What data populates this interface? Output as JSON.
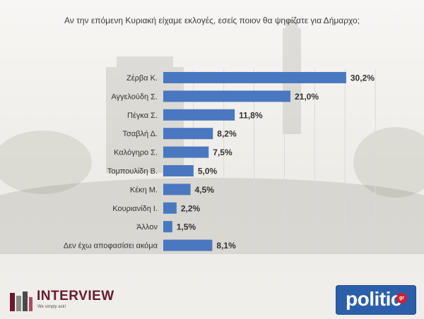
{
  "title": "Αν την επόμενη Κυριακή είχαμε εκλογές, εσείς ποιον θα ψηφίζατε για Δήμαρχο;",
  "chart_data": {
    "type": "bar",
    "orientation": "horizontal",
    "title": "Αν την επόμενη Κυριακή είχαμε εκλογές, εσείς ποιον θα ψηφίζατε για Δήμαρχο;",
    "categories": [
      "Ζέρβα Κ.",
      "Αγγελούδη Σ.",
      "Πέγκα Σ.",
      "Τσαβλή Δ.",
      "Καλόγηρο Σ.",
      "Τομπουλίδη Β.",
      "Κέκη Μ.",
      "Κουριανίδη Ι.",
      "Άλλον",
      "Δεν έχω αποφασίσει ακόμα"
    ],
    "values": [
      30.2,
      21.0,
      11.8,
      8.2,
      7.5,
      5.0,
      4.5,
      2.2,
      1.5,
      8.1
    ],
    "value_labels": [
      "30,2%",
      "21,0%",
      "11,8%",
      "8,2%",
      "7,5%",
      "5,0%",
      "4,5%",
      "2,2%",
      "1,5%",
      "8,1%"
    ],
    "xlim": [
      0,
      35
    ],
    "grid": true,
    "bar_color": "#4a78c0"
  },
  "logos": {
    "left": {
      "name": "INTERVIEW",
      "tagline": "We simply ask!",
      "color": "#6b1830"
    },
    "right": {
      "name": "politic",
      "suffix": "gr",
      "color": "#2b5fa9"
    }
  }
}
